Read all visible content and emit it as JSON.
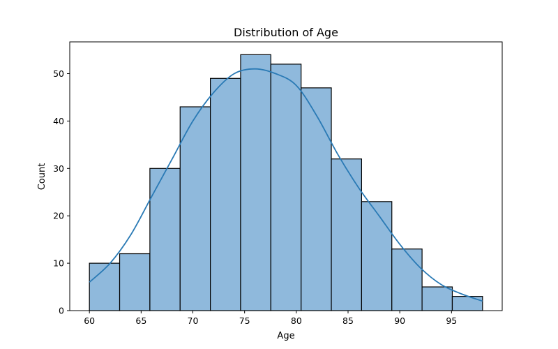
{
  "chart_data": {
    "type": "bar",
    "title": "Distribution of Age",
    "xlabel": "Age",
    "ylabel": "Count",
    "xlim": [
      58.1,
      99.9
    ],
    "ylim": [
      0,
      56.7
    ],
    "xticks": [
      60,
      65,
      70,
      75,
      80,
      85,
      90,
      95
    ],
    "yticks": [
      0,
      10,
      20,
      30,
      40,
      50
    ],
    "bin_edges": [
      60,
      62.923,
      65.846,
      68.769,
      71.692,
      74.615,
      77.538,
      80.462,
      83.385,
      86.308,
      89.231,
      92.154,
      95.077,
      98.0
    ],
    "counts": [
      10,
      12,
      30,
      43,
      49,
      54,
      52,
      47,
      32,
      23,
      13,
      5,
      3
    ],
    "kde": {
      "x": [
        60,
        62,
        64,
        66,
        68,
        70,
        72,
        74,
        76,
        78,
        80,
        82,
        84,
        86,
        88,
        90,
        92,
        94,
        96,
        98
      ],
      "y": [
        6,
        10,
        16,
        24,
        32,
        40,
        46,
        50,
        51,
        50,
        47.5,
        41,
        33,
        26,
        20,
        14,
        9,
        5.5,
        3.5,
        2
      ]
    },
    "grid": false,
    "colors": {
      "bar_fill": "#8fb9dc",
      "bar_edge": "#000000",
      "kde_line": "#2a7ab5",
      "axis": "#000000"
    }
  }
}
